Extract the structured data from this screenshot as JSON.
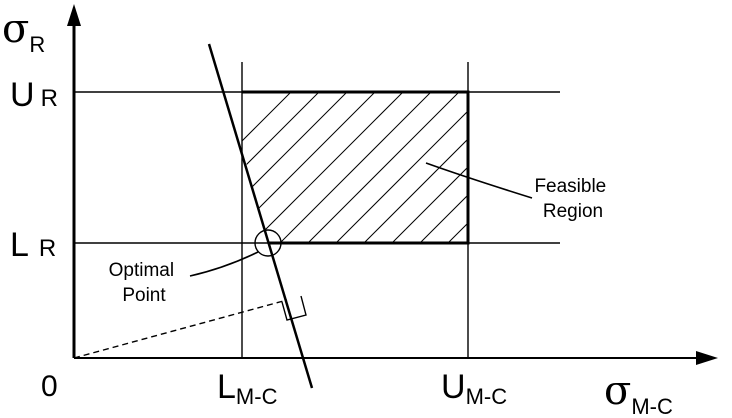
{
  "axes": {
    "y_symbol": "σ",
    "y_subscript": "R",
    "x_symbol": "σ",
    "x_subscript": "M-C",
    "origin_label": "0"
  },
  "y_ticks": {
    "upper_main": "U",
    "upper_sub": "R",
    "lower_main": "L",
    "lower_sub": "R"
  },
  "x_ticks": {
    "lower_main": "L",
    "lower_sub": "M-C",
    "upper_main": "U",
    "upper_sub": "M-C"
  },
  "annotations": {
    "feasible_line1": "Feasible",
    "feasible_line2": "Region",
    "optimal_line1": "Optimal",
    "optimal_line2": "Point"
  }
}
